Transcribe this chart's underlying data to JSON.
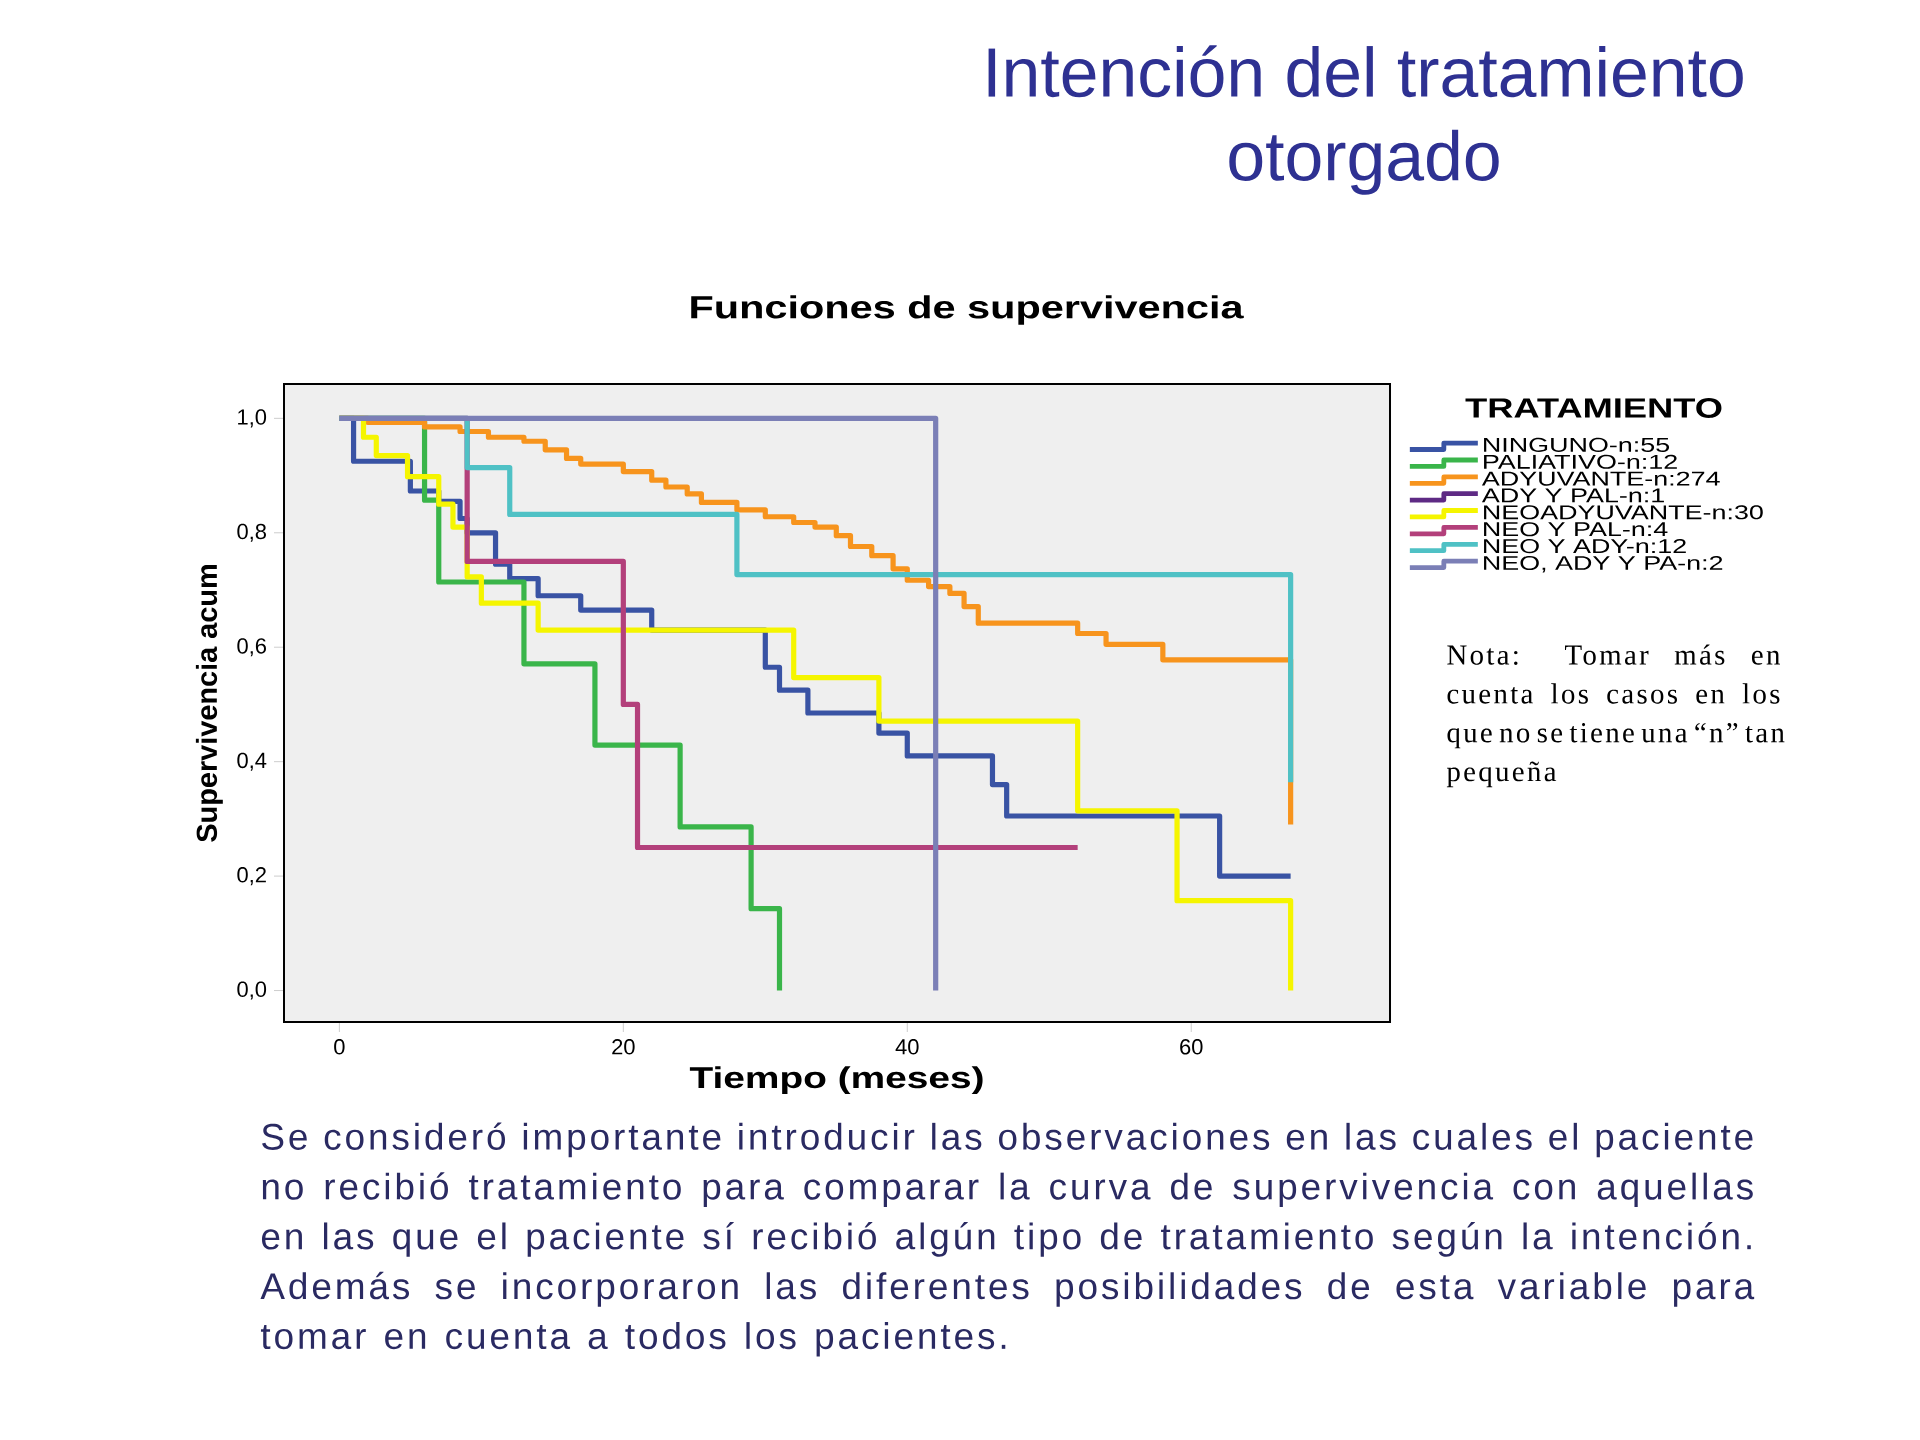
{
  "chart_data": {
    "type": "step",
    "title": "Intención del tratamiento otorgado",
    "subtitle": "Funciones de supervivencia",
    "xlabel": "Tiempo (meses)",
    "ylabel": "Supervivencia acum",
    "legend_title": "TRATAMIENTO",
    "legend": "right",
    "xlim": [
      -3.9,
      74
    ],
    "ylim": [
      -0.055,
      1.06
    ],
    "xticks": [
      0,
      20,
      40,
      60
    ],
    "yticks": [
      {
        "value": 0,
        "label": "0,0"
      },
      {
        "value": 0.2,
        "label": "0,2"
      },
      {
        "value": 0.4,
        "label": "0,4"
      },
      {
        "value": 0.6,
        "label": "0,6"
      },
      {
        "value": 0.8,
        "label": "0,8"
      },
      {
        "value": 1.0,
        "label": "1,0"
      }
    ],
    "series": [
      {
        "name": "NINGUNO-n:55",
        "color": "#3953a4",
        "x": [
          0,
          1,
          5,
          7,
          8.5,
          9,
          11,
          12,
          14,
          17,
          22,
          30,
          31,
          33,
          38,
          40,
          46,
          47,
          62,
          67
        ],
        "values": [
          1.0,
          0.925,
          0.873,
          0.855,
          0.825,
          0.8,
          0.745,
          0.72,
          0.69,
          0.665,
          0.63,
          0.565,
          0.525,
          0.485,
          0.45,
          0.41,
          0.36,
          0.305,
          0.2,
          0.2
        ]
      },
      {
        "name": "PALIATIVO-n:12",
        "color": "#3ab54a",
        "x": [
          0,
          6,
          7,
          13,
          18,
          24,
          29,
          31
        ],
        "values": [
          1.0,
          0.857,
          0.714,
          0.571,
          0.429,
          0.286,
          0.143,
          0
        ]
      },
      {
        "name": "ADYUVANTE-n:274",
        "color": "#f7941d",
        "x": [
          0,
          2,
          6,
          8.5,
          10.5,
          13,
          14.5,
          16,
          17,
          20,
          22,
          23,
          24.5,
          25.5,
          28,
          30,
          32,
          33.5,
          35,
          36,
          37.5,
          39,
          40,
          41.5,
          43,
          44,
          45,
          52,
          54,
          58,
          67
        ],
        "values": [
          1.0,
          0.993,
          0.985,
          0.977,
          0.967,
          0.96,
          0.945,
          0.93,
          0.92,
          0.907,
          0.892,
          0.88,
          0.868,
          0.853,
          0.84,
          0.828,
          0.818,
          0.81,
          0.795,
          0.776,
          0.76,
          0.737,
          0.717,
          0.706,
          0.694,
          0.671,
          0.642,
          0.624,
          0.605,
          0.578,
          0.29
        ]
      },
      {
        "name": "ADY Y PAL-n:1",
        "color": "#5e2a84"
      },
      {
        "name": "NEOADYUVANTE-n:30",
        "color": "#f5f500",
        "x": [
          0,
          1.7,
          2.6,
          4.8,
          7,
          8,
          9,
          10,
          14,
          32,
          38,
          52,
          59,
          67
        ],
        "values": [
          1.0,
          0.967,
          0.935,
          0.898,
          0.85,
          0.81,
          0.723,
          0.677,
          0.63,
          0.547,
          0.471,
          0.314,
          0.157,
          0
        ]
      },
      {
        "name": "NEO Y PAL-n:4",
        "color": "#b3407b",
        "x": [
          0,
          9,
          20,
          21,
          52
        ],
        "values": [
          1.0,
          0.75,
          0.5,
          0.25,
          0.25
        ]
      },
      {
        "name": "NEO Y ADY-n:12",
        "color": "#4fc1c5",
        "x": [
          0,
          9,
          12,
          28,
          67
        ],
        "values": [
          1.0,
          0.914,
          0.832,
          0.727,
          0.364
        ]
      },
      {
        "name": "NEO, ADY Y PA-n:2",
        "color": "#7b7fb6",
        "x": [
          0,
          42
        ],
        "values": [
          1.0,
          0
        ]
      }
    ],
    "annotations": [
      "Nota: Tomar más en cuenta los casos en los que no se tiene una “n” tan pequeña",
      "Se consideró importante introducir las observaciones en las cuales el paciente no recibió tratamiento para comparar la curva de supervivencia con aquellas en las que el paciente sí recibió algún tipo de tratamiento según la intención. Además se incorporaron las diferentes posibilidades de esta variable para tomar en cuenta a todos los pacientes."
    ]
  }
}
